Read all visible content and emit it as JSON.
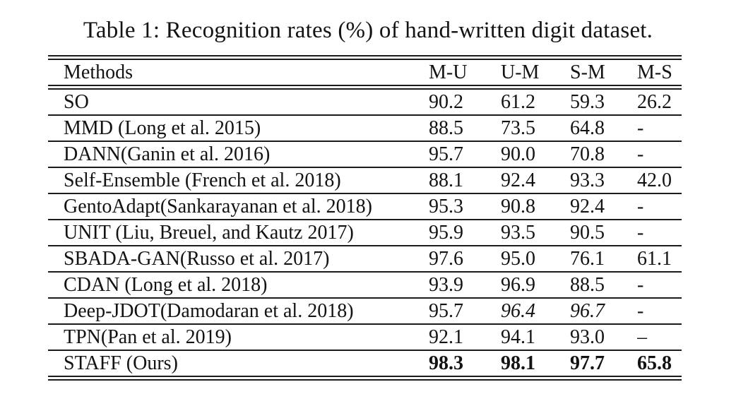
{
  "title": "Table 1: Recognition rates (%) of hand-written digit dataset.",
  "colors": {
    "background": "#ffffff",
    "text": "#131313",
    "rule": "#1b1b1b"
  },
  "table": {
    "headers": [
      "Methods",
      "M-U",
      "U-M",
      "S-M",
      "M-S"
    ],
    "rows": [
      {
        "method": "SO",
        "values": [
          "90.2",
          "61.2",
          "59.3",
          "26.2"
        ]
      },
      {
        "method": "MMD (Long et al. 2015)",
        "values": [
          "88.5",
          "73.5",
          "64.8",
          "-"
        ]
      },
      {
        "method": "DANN(Ganin et al. 2016)",
        "values": [
          "95.7",
          "90.0",
          "70.8",
          "-"
        ]
      },
      {
        "method": "Self-Ensemble (French et al. 2018)",
        "values": [
          "88.1",
          "92.4",
          "93.3",
          "42.0"
        ]
      },
      {
        "method": "GentoAdapt(Sankarayanan et al. 2018)",
        "values": [
          "95.3",
          "90.8",
          "92.4",
          "-"
        ]
      },
      {
        "method": "UNIT (Liu, Breuel, and Kautz 2017)",
        "values": [
          "95.9",
          "93.5",
          "90.5",
          "-"
        ]
      },
      {
        "method": "SBADA-GAN(Russo et al. 2017)",
        "values": [
          "97.6",
          "95.0",
          "76.1",
          "61.1"
        ]
      },
      {
        "method": "CDAN (Long et al. 2018)",
        "values": [
          "93.9",
          "96.9",
          "88.5",
          "-"
        ]
      },
      {
        "method": "Deep-JDOT(Damodaran et al. 2018)",
        "values": [
          "95.7",
          "96.4",
          "96.7",
          "-"
        ]
      },
      {
        "method": "TPN(Pan et al. 2019)",
        "values": [
          "92.1",
          "94.1",
          "93.0",
          "–"
        ]
      },
      {
        "method": "STAFF (Ours)",
        "values": [
          "98.3",
          "98.1",
          "97.7",
          "65.8"
        ]
      }
    ]
  }
}
